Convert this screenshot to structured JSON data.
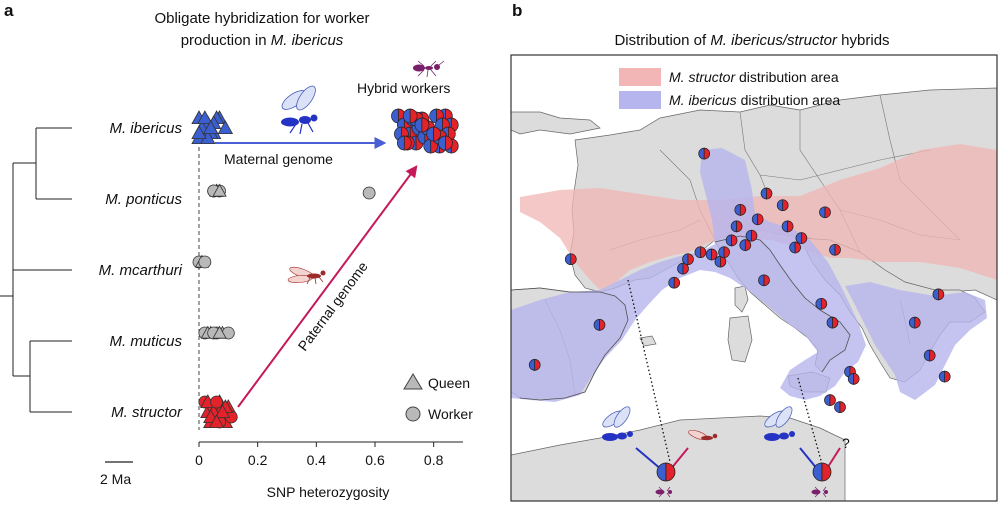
{
  "panel_a": {
    "letter": "a",
    "title_line1": "Obligate hybridization for worker",
    "title_line2_plain": "production in ",
    "title_line2_italic": "M. ibericus",
    "scale_bar_label": "2 Ma",
    "annotations": {
      "hybrid_workers": "Hybrid workers",
      "maternal_genome": "Maternal genome",
      "paternal_genome": "Paternal genome"
    },
    "legend": {
      "queen": "Queen",
      "worker": "Worker"
    }
  },
  "panel_b": {
    "letter": "b",
    "title_plain1": "Distribution of ",
    "title_italic": "M. ibericus/structor",
    "title_plain2": " hybrids",
    "legend": [
      {
        "italic": "M. structor",
        "plain": " distribution area",
        "color": "#f2b6b6"
      },
      {
        "italic": "M. ibericus",
        "plain": " distribution area",
        "color": "#b7b5ee"
      }
    ],
    "question_mark": "?"
  },
  "colors": {
    "ibericus_blue": "#3c5fd0",
    "structor_red": "#e3222a",
    "grey_marker": "#b9b9b9",
    "arrow_maternal": "#4a5fd6",
    "arrow_paternal": "#c5195a",
    "land": "#dcdcdc",
    "structor_area": "#f2b6b6",
    "ibericus_area": "#b7b5ee"
  },
  "chart_data": {
    "type": "scatter",
    "xlabel": "SNP heterozygosity",
    "xlim": [
      0,
      0.9
    ],
    "xticks": [
      {
        "v": 0,
        "label": "0"
      },
      {
        "v": 0.2,
        "label": "0.2"
      },
      {
        "v": 0.4,
        "label": "0.4"
      },
      {
        "v": 0.6,
        "label": "0.6"
      },
      {
        "v": 0.8,
        "label": "0.8"
      }
    ],
    "categories": [
      "M. ibericus",
      "M. ponticus",
      "M. mcarthuri",
      "M. muticus",
      "M. structor"
    ],
    "series": [
      {
        "name": "M. ibericus",
        "category": 0,
        "marker": "triangle",
        "color": "#3c5fd0",
        "x": [
          0.0,
          0.01,
          0.02,
          0.03,
          0.05,
          0.07,
          0.09,
          0.0,
          0.02,
          0.04,
          0.06,
          0.01,
          0.03,
          0.05,
          0.0,
          0.02,
          0.04
        ]
      },
      {
        "name": "M. ponticus",
        "category": 1,
        "marker": "mixed",
        "color": "#b9b9b9",
        "x": [
          0.05,
          0.06,
          0.07,
          0.06,
          0.05,
          0.07,
          0.58
        ]
      },
      {
        "name": "M. mcarthuri",
        "category": 2,
        "marker": "mixed",
        "color": "#b9b9b9",
        "x": [
          0.0,
          0.01,
          0.02
        ]
      },
      {
        "name": "M. muticus",
        "category": 3,
        "marker": "mixed",
        "color": "#b9b9b9",
        "x": [
          0.02,
          0.04,
          0.06,
          0.08,
          0.1,
          0.03,
          0.05,
          0.07
        ]
      },
      {
        "name": "M. structor",
        "category": 4,
        "marker": "triangle",
        "color": "#e3222a",
        "x": [
          0.02,
          0.03,
          0.04,
          0.05,
          0.06,
          0.07,
          0.08,
          0.09,
          0.1,
          0.11,
          0.03,
          0.05,
          0.07,
          0.09,
          0.04,
          0.06,
          0.08,
          0.06
        ]
      },
      {
        "name": "Hybrid workers",
        "category": 0,
        "marker": "circle-split",
        "color": "#3c5fd0",
        "x": [
          0.68,
          0.7,
          0.72,
          0.74,
          0.76,
          0.78,
          0.8,
          0.82,
          0.84,
          0.86,
          0.69,
          0.71,
          0.73,
          0.75,
          0.77,
          0.79,
          0.81,
          0.83,
          0.85,
          0.7,
          0.74,
          0.78,
          0.82,
          0.86,
          0.72,
          0.76,
          0.8,
          0.84
        ]
      }
    ],
    "grid": false
  },
  "map_hybrid_sites": [
    {
      "lon": -9.1,
      "lat": 38.8
    },
    {
      "lon": -6.2,
      "lat": 43.3
    },
    {
      "lon": -3.9,
      "lat": 40.5
    },
    {
      "lon": 2.1,
      "lat": 42.3
    },
    {
      "lon": 2.8,
      "lat": 42.9
    },
    {
      "lon": 3.2,
      "lat": 43.3
    },
    {
      "lon": 4.2,
      "lat": 43.6
    },
    {
      "lon": 5.1,
      "lat": 43.5
    },
    {
      "lon": 5.8,
      "lat": 43.2
    },
    {
      "lon": 6.1,
      "lat": 43.6
    },
    {
      "lon": 6.7,
      "lat": 44.1
    },
    {
      "lon": 7.1,
      "lat": 44.7
    },
    {
      "lon": 7.4,
      "lat": 45.4
    },
    {
      "lon": 7.8,
      "lat": 43.9
    },
    {
      "lon": 8.3,
      "lat": 44.3
    },
    {
      "lon": 8.8,
      "lat": 45.0
    },
    {
      "lon": 9.5,
      "lat": 46.1
    },
    {
      "lon": 9.3,
      "lat": 42.4
    },
    {
      "lon": 10.8,
      "lat": 45.6
    },
    {
      "lon": 11.2,
      "lat": 44.7
    },
    {
      "lon": 11.8,
      "lat": 43.8
    },
    {
      "lon": 12.3,
      "lat": 44.2
    },
    {
      "lon": 14.2,
      "lat": 45.3
    },
    {
      "lon": 15.0,
      "lat": 43.7
    },
    {
      "lon": 13.9,
      "lat": 41.4
    },
    {
      "lon": 14.8,
      "lat": 40.6
    },
    {
      "lon": 16.2,
      "lat": 38.5
    },
    {
      "lon": 16.5,
      "lat": 38.2
    },
    {
      "lon": 14.6,
      "lat": 37.3
    },
    {
      "lon": 15.4,
      "lat": 37.0
    },
    {
      "lon": 21.4,
      "lat": 40.6
    },
    {
      "lon": 22.6,
      "lat": 39.2
    },
    {
      "lon": 23.8,
      "lat": 38.3
    },
    {
      "lon": 23.3,
      "lat": 41.8
    },
    {
      "lon": 4.5,
      "lat": 47.8
    }
  ]
}
